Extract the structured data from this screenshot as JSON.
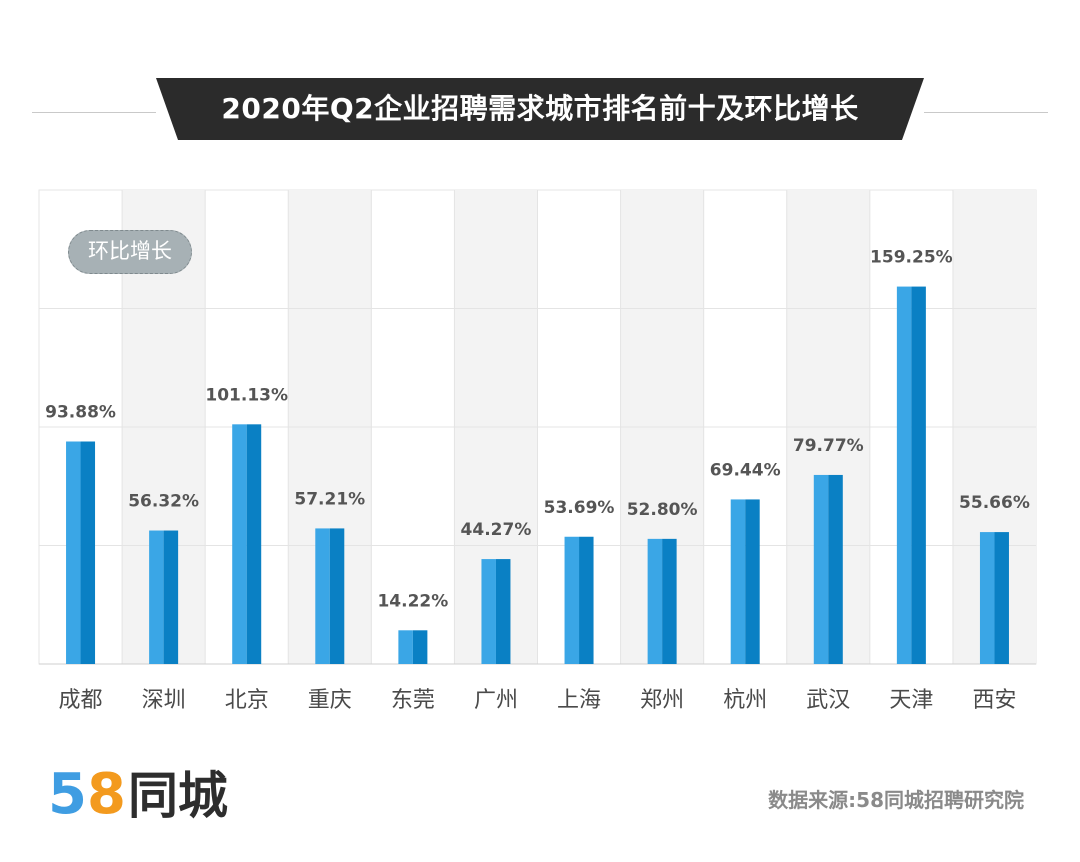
{
  "title": "2020年Q2企业招聘需求城市排名前十及环比增长",
  "legend_label": "环比增长",
  "logo": {
    "digit1": "5",
    "digit2": "8",
    "name": "同城"
  },
  "source": "数据来源:58同城招聘研究院",
  "colors": {
    "bar_light": "#3aa6e6",
    "bar_dark": "#0a80c4",
    "title_bg": "#2b2b2b",
    "label": "#4a4a4a",
    "value_label": "#555555"
  },
  "chart_data": {
    "type": "bar",
    "title": "2020年Q2企业招聘需求城市排名前十及环比增长",
    "xlabel": "",
    "ylabel": "",
    "ylim": [
      0,
      200
    ],
    "series": [
      {
        "name": "环比增长",
        "values": [
          93.88,
          56.32,
          101.13,
          57.21,
          14.22,
          44.27,
          53.69,
          52.8,
          69.44,
          79.77,
          159.25,
          55.66
        ]
      }
    ],
    "categories": [
      "成都",
      "深圳",
      "北京",
      "重庆",
      "东莞",
      "广州",
      "上海",
      "郑州",
      "杭州",
      "武汉",
      "天津",
      "西安"
    ],
    "labels": [
      "93.88%",
      "56.32%",
      "101.13%",
      "57.21%",
      "14.22%",
      "44.27%",
      "53.69%",
      "52.80%",
      "69.44%",
      "79.77%",
      "159.25%",
      "55.66%"
    ]
  }
}
